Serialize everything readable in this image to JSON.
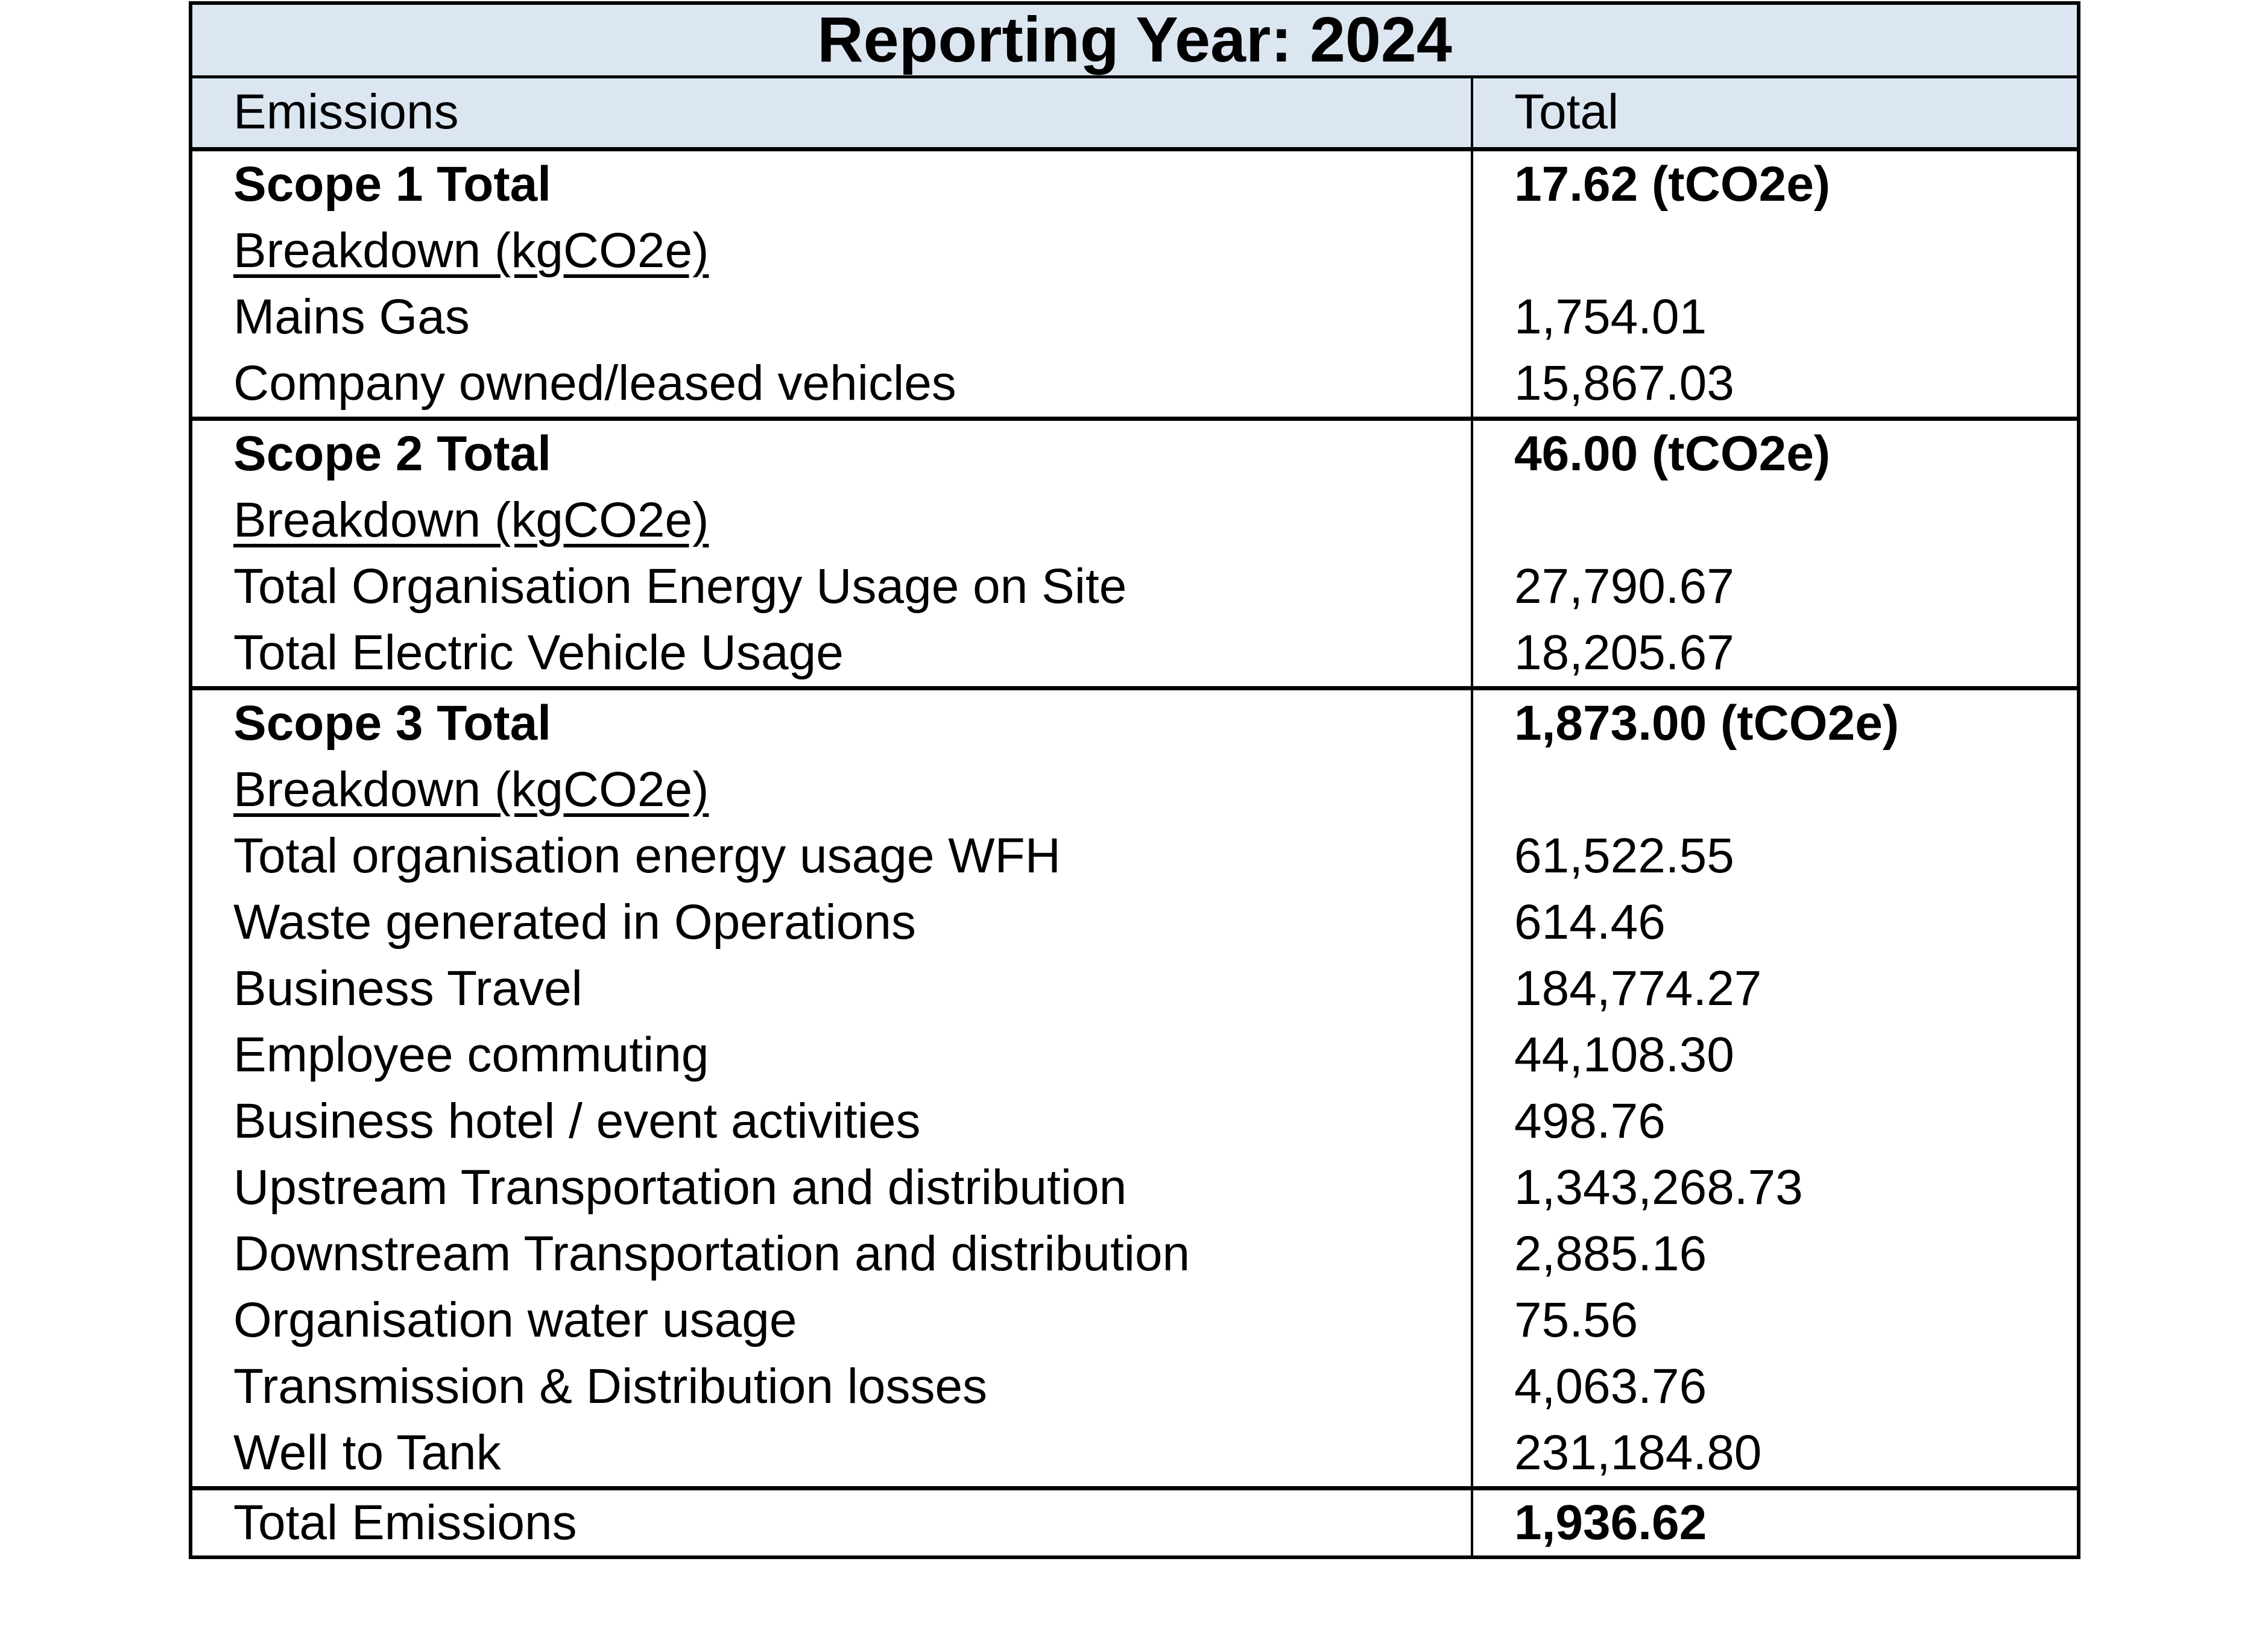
{
  "table": {
    "title": "Reporting Year: 2024",
    "header": {
      "emissions": "Emissions",
      "total": "Total"
    },
    "colors": {
      "header_bg": "#dce6f1",
      "border": "#000000",
      "text": "#000000"
    },
    "sections": [
      {
        "name": "scope-1",
        "rows": [
          {
            "label": "Scope 1 Total",
            "value": "17.62 (tCO2e)",
            "bold": true
          },
          {
            "label": "Breakdown (kgCO2e)",
            "value": "",
            "underline": true
          },
          {
            "label": "Mains Gas",
            "value": "1,754.01"
          },
          {
            "label": "Company owned/leased vehicles",
            "value": "15,867.03"
          }
        ]
      },
      {
        "name": "scope-2",
        "rows": [
          {
            "label": "Scope 2 Total",
            "value": "46.00 (tCO2e)",
            "bold": true
          },
          {
            "label": "Breakdown (kgCO2e)",
            "value": "",
            "underline": true
          },
          {
            "label": "Total Organisation Energy Usage on Site",
            "value": "27,790.67"
          },
          {
            "label": "Total Electric Vehicle Usage",
            "value": "18,205.67"
          }
        ]
      },
      {
        "name": "scope-3",
        "rows": [
          {
            "label": "Scope 3 Total",
            "value": "1,873.00 (tCO2e)",
            "bold": true
          },
          {
            "label": "Breakdown (kgCO2e)",
            "value": "",
            "underline": true
          },
          {
            "label": "Total organisation energy usage WFH",
            "value": "61,522.55"
          },
          {
            "label": "Waste generated in Operations",
            "value": "614.46"
          },
          {
            "label": "Business Travel",
            "value": "184,774.27"
          },
          {
            "label": "Employee commuting",
            "value": "44,108.30"
          },
          {
            "label": "Business hotel / event activities",
            "value": "498.76"
          },
          {
            "label": "Upstream Transportation and distribution",
            "value": "1,343,268.73"
          },
          {
            "label": "Downstream Transportation and distribution",
            "value": "2,885.16"
          },
          {
            "label": "Organisation water usage",
            "value": "75.56"
          },
          {
            "label": "Transmission & Distribution losses",
            "value": "4,063.76"
          },
          {
            "label": "Well to Tank",
            "value": "231,184.80"
          }
        ]
      },
      {
        "name": "total",
        "rows": [
          {
            "label": "Total Emissions",
            "value": "1,936.62",
            "value_bold": true
          }
        ]
      }
    ]
  }
}
